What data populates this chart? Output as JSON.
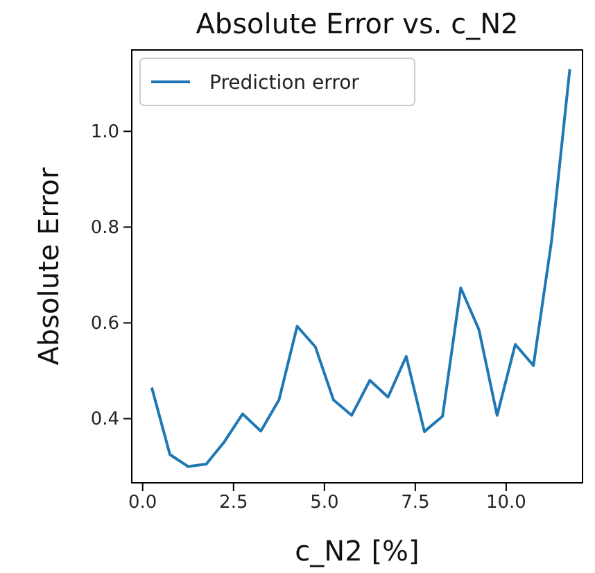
{
  "chart_data": {
    "type": "line",
    "title": "Absolute Error vs. c_N2",
    "xlabel": "c_N2 [%]",
    "ylabel": "Absolute Error",
    "x": [
      0.25,
      0.75,
      1.25,
      1.75,
      2.25,
      2.75,
      3.25,
      3.75,
      4.25,
      4.75,
      5.25,
      5.75,
      6.25,
      6.75,
      7.25,
      7.75,
      8.25,
      8.75,
      9.25,
      9.75,
      10.25,
      10.75,
      11.25,
      11.75
    ],
    "series": [
      {
        "name": "Prediction error",
        "color": "#1f77b4",
        "values": [
          0.465,
          0.325,
          0.3,
          0.305,
          0.352,
          0.41,
          0.374,
          0.439,
          0.593,
          0.55,
          0.439,
          0.407,
          0.48,
          0.445,
          0.53,
          0.373,
          0.405,
          0.673,
          0.586,
          0.407,
          0.555,
          0.511,
          0.772,
          1.13
        ]
      }
    ],
    "xlim": [
      -0.3,
      12.1
    ],
    "ylim": [
      0.266,
      1.17
    ],
    "xticks": [
      {
        "value": 0,
        "label": "0.0"
      },
      {
        "value": 2.5,
        "label": "2.5"
      },
      {
        "value": 5,
        "label": "5.0"
      },
      {
        "value": 7.5,
        "label": "7.5"
      },
      {
        "value": 10,
        "label": "10.0"
      }
    ],
    "yticks": [
      {
        "value": 0.4,
        "label": "0.4"
      },
      {
        "value": 0.6,
        "label": "0.6"
      },
      {
        "value": 0.8,
        "label": "0.8"
      },
      {
        "value": 1.0,
        "label": "1.0"
      }
    ],
    "legend": "top left",
    "grid": false,
    "line_style": "solid",
    "marker": "none"
  }
}
